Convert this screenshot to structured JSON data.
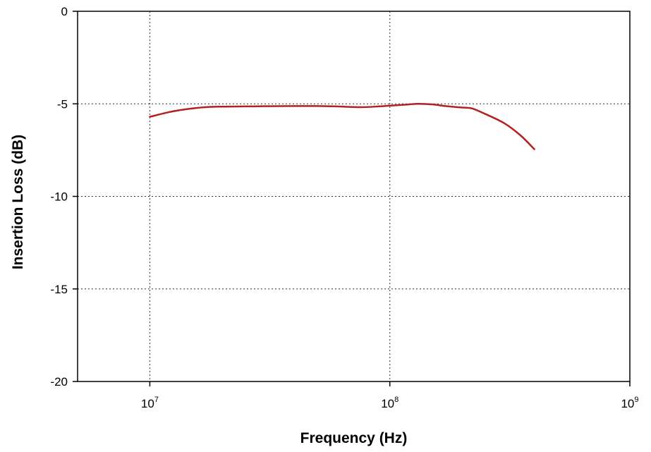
{
  "chart_data": {
    "type": "line",
    "title": "",
    "xlabel": "Frequency (Hz)",
    "ylabel": "Insertion Loss (dB)",
    "x_scale": "log",
    "xlim": [
      5000000,
      1000000000
    ],
    "ylim": [
      -20,
      0
    ],
    "x_ticks": [
      {
        "value": 10000000,
        "base": "10",
        "exp": "7"
      },
      {
        "value": 100000000,
        "base": "10",
        "exp": "8"
      },
      {
        "value": 1000000000,
        "base": "10",
        "exp": "9"
      }
    ],
    "y_ticks": [
      {
        "value": 0,
        "label": "0"
      },
      {
        "value": -5,
        "label": "-5"
      },
      {
        "value": -10,
        "label": "-10"
      },
      {
        "value": -15,
        "label": "-15"
      },
      {
        "value": -20,
        "label": "-20"
      }
    ],
    "grid": true,
    "series": [
      {
        "color": "#b22222",
        "x": [
          10000000,
          12000000,
          14000000,
          17000000,
          20000000,
          25000000,
          30000000,
          40000000,
          50000000,
          60000000,
          75000000,
          90000000,
          100000000,
          115000000,
          130000000,
          150000000,
          170000000,
          200000000,
          220000000,
          250000000,
          300000000,
          350000000,
          400000000
        ],
        "y": [
          -5.7,
          -5.45,
          -5.3,
          -5.18,
          -5.15,
          -5.14,
          -5.13,
          -5.12,
          -5.12,
          -5.14,
          -5.18,
          -5.14,
          -5.1,
          -5.05,
          -5.0,
          -5.03,
          -5.12,
          -5.2,
          -5.25,
          -5.55,
          -6.05,
          -6.7,
          -7.45
        ]
      }
    ]
  }
}
